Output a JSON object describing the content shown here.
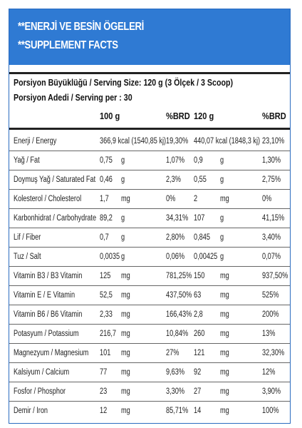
{
  "banner": {
    "line1": "**ENERJİ VE BESİN ÖGELERİ",
    "line2": "**SUPPLEMENT FACTS"
  },
  "serving": {
    "size": "Porsiyon Büyüklüğü / Serving Size: 120 g (3 Ölçek / 3 Scoop)",
    "per": "Porsiyon Adedi / Serving per : 30"
  },
  "columns": {
    "amount1": "100 g",
    "brd1": "%BRD",
    "amount2": "120 g",
    "brd2": "%BRD"
  },
  "rows": [
    {
      "name": "Enerji / Energy",
      "v1": "366,9 kcal (1540,85 kj)",
      "u1": "",
      "p1": "19,30%",
      "v2": "440,07 kcal (1848,3 kj)",
      "u2": "",
      "p2": "23,10%"
    },
    {
      "name": "Yağ / Fat",
      "v1": "0,75",
      "u1": "g",
      "p1": "1,07%",
      "v2": "0,9",
      "u2": "g",
      "p2": "1,30%"
    },
    {
      "name": "Doymuş Yağ / Saturated Fat",
      "v1": "0,46",
      "u1": "g",
      "p1": "2,3%",
      "v2": "0,55",
      "u2": "g",
      "p2": "2,75%"
    },
    {
      "name": "Kolesterol / Cholesterol",
      "v1": "1,7",
      "u1": "mg",
      "p1": "0%",
      "v2": "2",
      "u2": "mg",
      "p2": "0%"
    },
    {
      "name": "Karbonhidrat / Carbohydrate",
      "v1": "89,2",
      "u1": "g",
      "p1": "34,31%",
      "v2": "107",
      "u2": "g",
      "p2": "41,15%"
    },
    {
      "name": "Lif / Fiber",
      "v1": "0,7",
      "u1": "g",
      "p1": "2,80%",
      "v2": "0,845",
      "u2": "g",
      "p2": "3,40%"
    },
    {
      "name": "Tuz / Salt",
      "v1": "0,0035",
      "u1": "g",
      "p1": "0,06%",
      "v2": "0,00425",
      "u2": "g",
      "p2": "0,07%"
    },
    {
      "name": "Vitamin B3 / B3 Vitamin",
      "v1": "125",
      "u1": "mg",
      "p1": "781,25%",
      "v2": "150",
      "u2": "mg",
      "p2": "937,50%"
    },
    {
      "name": "Vitamin E / E Vitamin",
      "v1": "52,5",
      "u1": "mg",
      "p1": "437,50%",
      "v2": "63",
      "u2": "mg",
      "p2": "525%"
    },
    {
      "name": "Vitamin B6 / B6 Vitamin",
      "v1": "2,33",
      "u1": "mg",
      "p1": "166,43%",
      "v2": "2,8",
      "u2": "mg",
      "p2": "200%"
    },
    {
      "name": "Potasyum / Potassium",
      "v1": "216,7",
      "u1": "mg",
      "p1": "10,84%",
      "v2": "260",
      "u2": "mg",
      "p2": "13%"
    },
    {
      "name": "Magnezyum / Magnesium",
      "v1": "101",
      "u1": "mg",
      "p1": "27%",
      "v2": "121",
      "u2": "mg",
      "p2": "32,30%"
    },
    {
      "name": "Kalsiyum / Calcium",
      "v1": "77",
      "u1": "mg",
      "p1": "9,63%",
      "v2": "92",
      "u2": "mg",
      "p2": "12%"
    },
    {
      "name": "Fosfor / Phosphor",
      "v1": "23",
      "u1": "mg",
      "p1": "3,30%",
      "v2": "27",
      "u2": "mg",
      "p2": "3,90%"
    },
    {
      "name": "Demir / Iron",
      "v1": "12",
      "u1": "mg",
      "p1": "85,71%",
      "v2": "14",
      "u2": "mg",
      "p2": "100%"
    }
  ]
}
